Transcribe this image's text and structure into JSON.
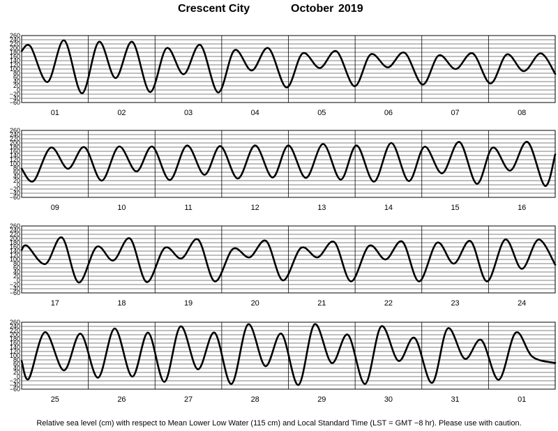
{
  "header": {
    "location": "Crescent City",
    "month": "October",
    "year": "2019"
  },
  "footer": {
    "note": "Relative sea level (cm) with respect to Mean Lower Low Water (115 cm) and Local Standard Time (LST = GMT −8 hr). Please use with caution."
  },
  "chart_data": {
    "type": "line",
    "ylim": [
      -60,
      260
    ],
    "y_ticks": [
      "260",
      "240",
      "220",
      "200",
      "180",
      "160",
      "140",
      "120",
      "100",
      "80",
      "60",
      "40",
      "20",
      "0",
      "−20",
      "−40",
      "−60"
    ],
    "grid": true,
    "panels": [
      {
        "days": [
          "01",
          "02",
          "03",
          "04",
          "05",
          "06",
          "07",
          "08"
        ],
        "series": [
          {
            "x_hours": [
              0,
              3.2,
              9.3,
              15.3,
              21.7,
              27.8,
              33.8,
              39.8,
              46.2,
              52.2,
              58.3,
              64.3,
              70.7,
              76.6,
              82.8,
              88.8,
              95.3,
              101.1,
              107.3,
              113.3,
              119.8,
              125.6,
              131.8,
              137.8,
              144.3,
              150.1,
              156.2,
              162.3,
              168.7,
              174.6,
              180.7,
              186.8,
              192
            ],
            "tide_cm": [
              186,
              208,
              38,
              237,
              -16,
              230,
              57,
              230,
              -10,
              200,
              75,
              215,
              -12,
              190,
              93,
              200,
              12,
              175,
              105,
              185,
              18,
              170,
              108,
              178,
              26,
              165,
              100,
              175,
              31,
              170,
              90,
              175,
              77
            ]
          }
        ]
      },
      {
        "days": [
          "09",
          "10",
          "11",
          "12",
          "13",
          "14",
          "15",
          "16"
        ],
        "series": [
          {
            "x_hours": [
              0,
              4.3,
              10.5,
              16.7,
              22.6,
              28.8,
              35,
              41.3,
              47,
              53.3,
              59.5,
              65.8,
              71.5,
              77.8,
              84,
              90.3,
              96,
              102.3,
              108.5,
              114.8,
              120.5,
              126.8,
              133,
              139.3,
              145,
              151.3,
              157.5,
              163.8,
              169.5,
              175.8,
              182,
              188.3,
              192
            ],
            "tide_cm": [
              77,
              18,
              178,
              77,
              180,
              20,
              183,
              64,
              183,
              23,
              188,
              48,
              185,
              30,
              188,
              35,
              188,
              33,
              195,
              25,
              188,
              15,
              200,
              18,
              182,
              55,
              205,
              5,
              178,
              68,
              205,
              -5,
              145
            ]
          }
        ]
      },
      {
        "days": [
          "17",
          "18",
          "19",
          "20",
          "21",
          "22",
          "23",
          "24"
        ],
        "series": [
          {
            "x_hours": [
              0,
              2,
              8.5,
              14.5,
              20.5,
              27,
              33,
              39,
              45,
              51.5,
              57.5,
              63.5,
              69.5,
              76,
              82,
              88,
              94,
              100.5,
              106.5,
              112.5,
              118.5,
              125,
              131,
              137,
              143,
              149.5,
              155.5,
              161.5,
              167.5,
              174,
              180,
              186,
              192
            ],
            "tide_cm": [
              145,
              165,
              78,
              205,
              -10,
              160,
              95,
              200,
              -8,
              155,
              105,
              195,
              -5,
              150,
              110,
              188,
              0,
              155,
              110,
              183,
              -5,
              165,
              100,
              185,
              -5,
              180,
              80,
              188,
              -5,
              195,
              55,
              195,
              75
            ]
          }
        ]
      },
      {
        "days": [
          "25",
          "26",
          "27",
          "28",
          "29",
          "30",
          "31",
          "01"
        ],
        "series": [
          {
            "x_hours": [
              0,
              2.6,
              8.4,
              15.2,
              21.2,
              27.5,
              33.5,
              39.8,
              45.5,
              51.4,
              57.2,
              63.4,
              69.4,
              75.5,
              81.5,
              87.7,
              93.5,
              99.6,
              105.4,
              111.6,
              117.4,
              123.6,
              129.4,
              135.6,
              141.4,
              147.7,
              153.3,
              159.5,
              165.4,
              171.7,
              177.8,
              183.8,
              192
            ],
            "tide_cm": [
              75,
              -10,
              212,
              30,
              205,
              -5,
              230,
              0,
              210,
              -25,
              240,
              35,
              210,
              -35,
              250,
              50,
              205,
              -40,
              250,
              65,
              200,
              -35,
              240,
              75,
              185,
              -30,
              230,
              85,
              175,
              -15,
              210,
              95,
              65
            ]
          }
        ]
      }
    ]
  }
}
